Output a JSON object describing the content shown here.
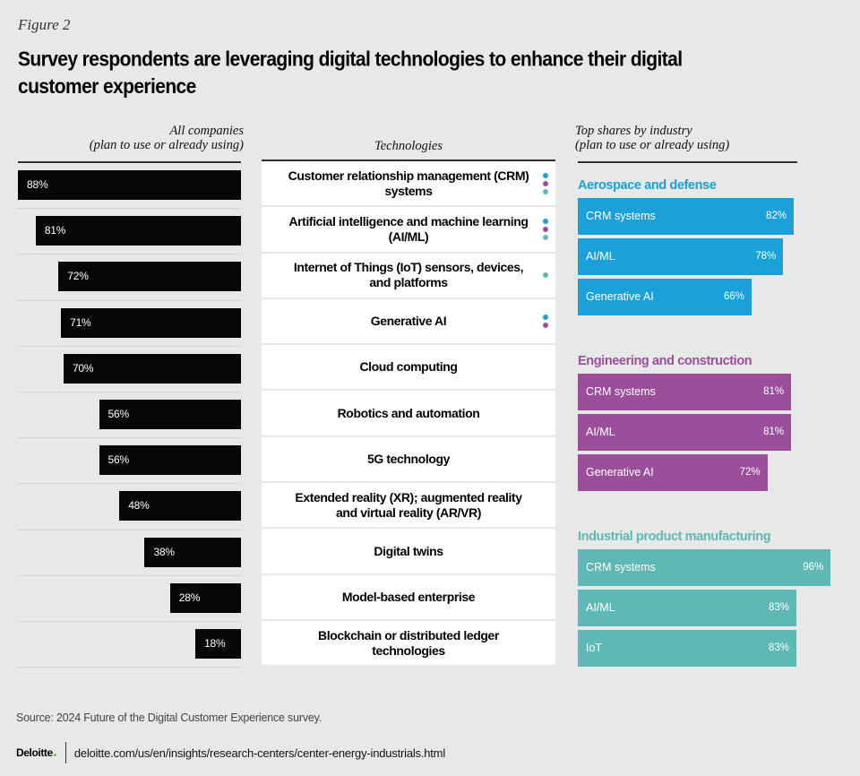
{
  "figure_label": "Figure 2",
  "title": "Survey respondents are leveraging digital technologies to enhance their digital customer experience",
  "headers": {
    "all_companies_line1": "All companies",
    "all_companies_line2": "(plan to use or already using)",
    "technologies": "Technologies",
    "industry_line1": "Top shares by industry",
    "industry_line2": "(plan to use or already using)"
  },
  "colors": {
    "all_bar": "#050708",
    "aerospace": "#1ba1d9",
    "engineering": "#9b4f9b",
    "industrial": "#5fb8b5"
  },
  "chart_data": [
    {
      "type": "bar",
      "title": "All companies (plan to use or already using)",
      "orientation": "horizontal",
      "unit": "%",
      "xlim": [
        0,
        100
      ],
      "categories": [
        "Customer relationship management (CRM) systems",
        "Artificial intelligence and machine learning (AI/ML)",
        "Internet of Things (IoT) sensors, devices, and platforms",
        "Generative AI",
        "Cloud computing",
        "Robotics and automation",
        "5G technology",
        "Extended reality (XR); augmented reality and virtual reality (AR/VR)",
        "Digital twins",
        "Model-based enterprise",
        "Blockchain or distributed ledger technologies"
      ],
      "values": [
        88,
        81,
        72,
        71,
        70,
        56,
        56,
        48,
        38,
        28,
        18
      ],
      "industry_markers": [
        [
          "aerospace",
          "engineering",
          "industrial"
        ],
        [
          "aerospace",
          "engineering",
          "industrial"
        ],
        [
          "industrial"
        ],
        [
          "aerospace",
          "engineering"
        ],
        [],
        [],
        [],
        [],
        [],
        [],
        []
      ]
    },
    {
      "type": "bar",
      "title": "Top shares by industry (plan to use or already using)",
      "orientation": "horizontal",
      "unit": "%",
      "xlim": [
        0,
        100
      ],
      "groups": [
        {
          "key": "aerospace",
          "name": "Aerospace and defense",
          "categories": [
            "CRM systems",
            "AI/ML",
            "Generative AI"
          ],
          "values": [
            82,
            78,
            66
          ]
        },
        {
          "key": "engineering",
          "name": "Engineering and construction",
          "categories": [
            "CRM systems",
            "AI/ML",
            "Generative AI"
          ],
          "values": [
            81,
            81,
            72
          ]
        },
        {
          "key": "industrial",
          "name": "Industrial product manufacturing",
          "categories": [
            "CRM systems",
            "AI/ML",
            "IoT"
          ],
          "values": [
            96,
            83,
            83
          ]
        }
      ]
    }
  ],
  "source": "Source: 2024 Future of the Digital Customer Experience survey.",
  "footer": {
    "logo": "Deloitte",
    "url": "deloitte.com/us/en/insights/research-centers/center-energy-industrials.html"
  }
}
